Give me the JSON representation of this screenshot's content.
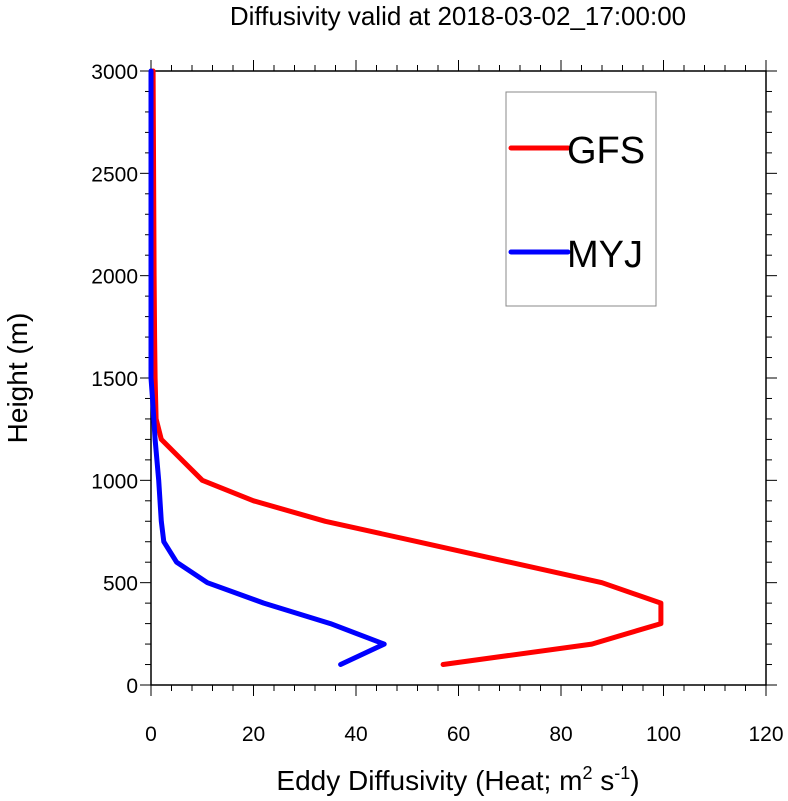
{
  "chart_data": {
    "type": "line",
    "title": "Diffusivity valid at 2018-03-02_17:00:00",
    "xlabel": "Eddy Diffusivity (Heat; m² s⁻¹)",
    "xlabel_parts": {
      "pre": "Eddy Diffusivity (Heat; m",
      "sup1": "2",
      "mid": " s",
      "sup2": "-1",
      "post": ")"
    },
    "ylabel": "Height (m)",
    "xlim": [
      0,
      120
    ],
    "ylim": [
      0,
      3000
    ],
    "xticks": [
      0,
      20,
      40,
      60,
      80,
      100,
      120
    ],
    "yticks": [
      0,
      500,
      1000,
      1500,
      2000,
      2500,
      3000
    ],
    "xtick_labels": [
      "0",
      "20",
      "40",
      "60",
      "80",
      "100",
      "120"
    ],
    "ytick_labels": [
      "0",
      "500",
      "1000",
      "1500",
      "2000",
      "2500",
      "3000"
    ],
    "grid": false,
    "legend": {
      "position": "top-right",
      "entries": [
        "GFS",
        "MYJ"
      ]
    },
    "series": [
      {
        "name": "GFS",
        "color": "#ff0000",
        "points": [
          [
            57,
            100
          ],
          [
            86,
            200
          ],
          [
            99.5,
            300
          ],
          [
            99.5,
            400
          ],
          [
            88,
            500
          ],
          [
            70,
            600
          ],
          [
            52,
            700
          ],
          [
            34,
            800
          ],
          [
            20,
            900
          ],
          [
            10,
            1000
          ],
          [
            6,
            1100
          ],
          [
            2,
            1200
          ],
          [
            1,
            1300
          ],
          [
            0.9,
            1400
          ],
          [
            0.8,
            1500
          ],
          [
            0.7,
            1700
          ],
          [
            0.6,
            2000
          ],
          [
            0.5,
            2500
          ],
          [
            0.4,
            3000
          ]
        ]
      },
      {
        "name": "MYJ",
        "color": "#0000ff",
        "points": [
          [
            37,
            100
          ],
          [
            45.5,
            200
          ],
          [
            35,
            300
          ],
          [
            22,
            400
          ],
          [
            11,
            500
          ],
          [
            5,
            600
          ],
          [
            2.5,
            700
          ],
          [
            2,
            800
          ],
          [
            1.5,
            1000
          ],
          [
            0.8,
            1200
          ],
          [
            0.3,
            1400
          ],
          [
            0,
            1500
          ],
          [
            0,
            3000
          ]
        ]
      }
    ]
  }
}
